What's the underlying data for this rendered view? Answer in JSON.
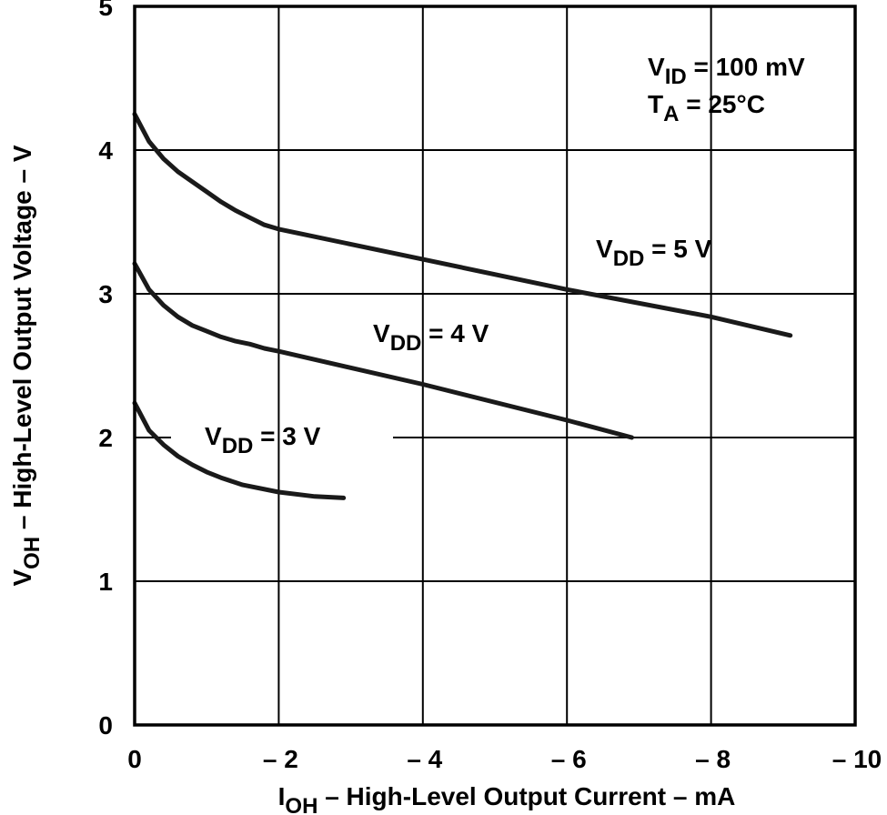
{
  "chart_data": {
    "type": "line",
    "title": "",
    "xlabel": {
      "main": "I",
      "sub": "OH",
      "rest": " – High-Level Output Current – mA"
    },
    "ylabel": {
      "main": "V",
      "sub": "OH",
      "rest": " – High-Level Output Voltage – V"
    },
    "xlim": [
      0,
      -10
    ],
    "ylim": [
      0,
      5
    ],
    "x_ticks": [
      {
        "value": 0,
        "label": "0"
      },
      {
        "value": -2,
        "label": "– 2"
      },
      {
        "value": -4,
        "label": "– 4"
      },
      {
        "value": -6,
        "label": "– 6"
      },
      {
        "value": -8,
        "label": "– 8"
      },
      {
        "value": -10,
        "label": "– 10"
      }
    ],
    "y_ticks": [
      {
        "value": 0,
        "label": "0"
      },
      {
        "value": 1,
        "label": "1"
      },
      {
        "value": 2,
        "label": "2"
      },
      {
        "value": 3,
        "label": "3"
      },
      {
        "value": 4,
        "label": "4"
      },
      {
        "value": 5,
        "label": "5"
      }
    ],
    "grid": true,
    "conditions": [
      {
        "main": "V",
        "sub": "ID",
        "rest": " = 100 mV"
      },
      {
        "main": "T",
        "sub": "A",
        "rest": " = 25°C"
      }
    ],
    "series": [
      {
        "name": "VDD = 5 V",
        "label": {
          "main": "V",
          "sub": "DD",
          "rest": " = 5 V"
        },
        "x": [
          0,
          -0.2,
          -0.4,
          -0.6,
          -0.8,
          -1.0,
          -1.2,
          -1.4,
          -1.6,
          -1.8,
          -2,
          -4,
          -6,
          -8,
          -9.1
        ],
        "y": [
          4.25,
          4.06,
          3.94,
          3.85,
          3.78,
          3.71,
          3.64,
          3.58,
          3.53,
          3.48,
          3.45,
          3.24,
          3.03,
          2.84,
          2.71
        ]
      },
      {
        "name": "VDD = 4 V",
        "label": {
          "main": "V",
          "sub": "DD",
          "rest": " = 4 V"
        },
        "x": [
          0,
          -0.2,
          -0.4,
          -0.6,
          -0.8,
          -1.0,
          -1.2,
          -1.4,
          -1.6,
          -1.8,
          -2,
          -4,
          -6,
          -6.9
        ],
        "y": [
          3.21,
          3.03,
          2.92,
          2.84,
          2.78,
          2.74,
          2.7,
          2.67,
          2.65,
          2.62,
          2.6,
          2.37,
          2.12,
          2.0
        ]
      },
      {
        "name": "VDD = 3 V",
        "label": {
          "main": "V",
          "sub": "DD",
          "rest": " = 3 V"
        },
        "x": [
          0,
          -0.2,
          -0.4,
          -0.6,
          -0.8,
          -1.0,
          -1.2,
          -1.5,
          -2,
          -2.5,
          -2.9
        ],
        "y": [
          2.24,
          2.05,
          1.95,
          1.87,
          1.81,
          1.76,
          1.72,
          1.67,
          1.62,
          1.59,
          1.58
        ]
      }
    ]
  }
}
